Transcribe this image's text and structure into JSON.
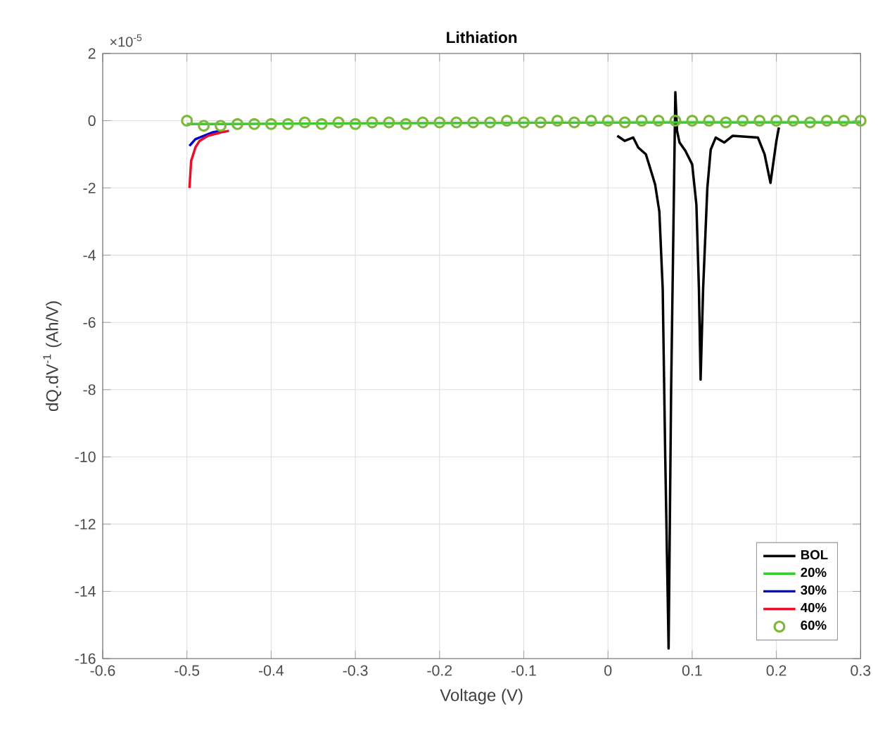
{
  "chart_data": {
    "type": "line",
    "title": "Lithiation",
    "xlabel": "Voltage (V)",
    "ylabel": "dQ.dV$^{-1}$ (Ah/V)",
    "annotations": [
      "×10$^{-5}$"
    ],
    "xlim": [
      -0.6,
      0.3
    ],
    "xticks": [
      -0.6,
      -0.5,
      -0.4,
      -0.3,
      -0.2,
      -0.1,
      0,
      0.1,
      0.2,
      0.3
    ],
    "ylim": [
      -16,
      2
    ],
    "yticks": [
      -16,
      -14,
      -12,
      -10,
      -8,
      -6,
      -4,
      -2,
      0,
      2
    ],
    "grid": true,
    "legend": "bottom right",
    "series": [
      {
        "name": "BOL",
        "color": "#000000",
        "marker": "none",
        "x": [
          0.011,
          0.02,
          0.03,
          0.036,
          0.045,
          0.05,
          0.056,
          0.061,
          0.065,
          0.068,
          0.072,
          0.075,
          0.08,
          0.082,
          0.085,
          0.092,
          0.1,
          0.105,
          0.108,
          0.11,
          0.113,
          0.118,
          0.122,
          0.128,
          0.138,
          0.148,
          0.178,
          0.186,
          0.193,
          0.2,
          0.203
        ],
        "values": [
          -0.45,
          -0.6,
          -0.5,
          -0.8,
          -1.0,
          -1.4,
          -1.9,
          -2.7,
          -5.0,
          -10.0,
          -15.7,
          -8.0,
          0.85,
          -0.3,
          -0.65,
          -0.9,
          -1.3,
          -2.5,
          -5.0,
          -7.7,
          -5.0,
          -2.0,
          -0.86,
          -0.5,
          -0.65,
          -0.45,
          -0.5,
          -1.0,
          -1.85,
          -0.6,
          -0.2
        ]
      },
      {
        "name": "20%",
        "color": "#33cc33",
        "marker": "none",
        "x": [
          -0.5,
          -0.45,
          -0.3,
          -0.1,
          0.1,
          0.3
        ],
        "values": [
          -0.1,
          -0.1,
          -0.08,
          -0.06,
          -0.05,
          -0.05
        ]
      },
      {
        "name": "30%",
        "color": "#0000cc",
        "marker": "none",
        "x": [
          -0.497,
          -0.49,
          -0.48,
          -0.47,
          -0.46
        ],
        "values": [
          -0.75,
          -0.55,
          -0.45,
          -0.35,
          -0.3
        ]
      },
      {
        "name": "40%",
        "color": "#e8102a",
        "marker": "none",
        "x": [
          -0.497,
          -0.495,
          -0.49,
          -0.485,
          -0.475,
          -0.46,
          -0.45
        ],
        "values": [
          -2.0,
          -1.2,
          -0.8,
          -0.6,
          -0.45,
          -0.35,
          -0.3
        ]
      },
      {
        "name": "60%",
        "color": "#7db83a",
        "type": "scatter",
        "marker": "circle",
        "x": [
          -0.5,
          -0.48,
          -0.46,
          -0.44,
          -0.42,
          -0.4,
          -0.38,
          -0.36,
          -0.34,
          -0.32,
          -0.3,
          -0.28,
          -0.26,
          -0.24,
          -0.22,
          -0.2,
          -0.18,
          -0.16,
          -0.14,
          -0.12,
          -0.1,
          -0.08,
          -0.06,
          -0.04,
          -0.02,
          0,
          0.02,
          0.04,
          0.06,
          0.08,
          0.1,
          0.12,
          0.14,
          0.16,
          0.18,
          0.2,
          0.22,
          0.24,
          0.26,
          0.28,
          0.3
        ],
        "values": [
          0,
          -0.15,
          -0.15,
          -0.1,
          -0.1,
          -0.1,
          -0.1,
          -0.05,
          -0.1,
          -0.05,
          -0.1,
          -0.05,
          -0.05,
          -0.1,
          -0.05,
          -0.05,
          -0.05,
          -0.05,
          -0.05,
          0,
          -0.05,
          -0.05,
          0,
          -0.05,
          0,
          0,
          -0.05,
          0,
          0,
          0,
          0,
          0,
          -0.05,
          0,
          0,
          0,
          0,
          -0.05,
          0,
          0,
          0
        ]
      }
    ]
  }
}
